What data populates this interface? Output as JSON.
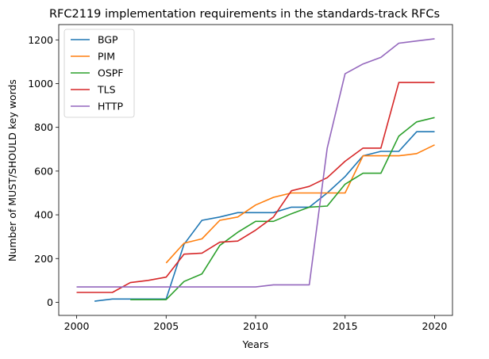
{
  "chart_data": {
    "type": "line",
    "title": "RFC2119 implementation requirements in the standards-track RFCs",
    "xlabel": "Years",
    "ylabel": "Number of MUST/SHOULD key words",
    "xlim": [
      1999,
      2021
    ],
    "ylim": [
      -60,
      1270
    ],
    "xticks": [
      2000,
      2005,
      2010,
      2015,
      2020
    ],
    "yticks": [
      0,
      200,
      400,
      600,
      800,
      1000,
      1200
    ],
    "legend": "upper-left",
    "grid": false,
    "series": [
      {
        "name": "BGP",
        "color": "#1f77b4",
        "x": [
          2001,
          2002,
          2003,
          2004,
          2005,
          2006,
          2007,
          2008,
          2009,
          2010,
          2011,
          2012,
          2013,
          2014,
          2015,
          2016,
          2017,
          2018,
          2019,
          2020
        ],
        "y": [
          5,
          15,
          15,
          15,
          15,
          265,
          375,
          390,
          410,
          410,
          410,
          435,
          435,
          500,
          575,
          670,
          690,
          690,
          780,
          780
        ]
      },
      {
        "name": "PIM",
        "color": "#ff7f0e",
        "x": [
          2005,
          2006,
          2007,
          2008,
          2009,
          2010,
          2011,
          2012,
          2013,
          2014,
          2015,
          2016,
          2017,
          2018,
          2019,
          2020
        ],
        "y": [
          180,
          270,
          290,
          375,
          390,
          445,
          480,
          500,
          500,
          500,
          500,
          670,
          670,
          670,
          680,
          720
        ]
      },
      {
        "name": "OSPF",
        "color": "#2ca02c",
        "x": [
          2003,
          2004,
          2005,
          2006,
          2007,
          2008,
          2009,
          2010,
          2011,
          2012,
          2013,
          2014,
          2015,
          2016,
          2017,
          2018,
          2019,
          2020
        ],
        "y": [
          12,
          12,
          12,
          95,
          130,
          260,
          320,
          370,
          370,
          405,
          435,
          440,
          540,
          590,
          590,
          760,
          825,
          845
        ]
      },
      {
        "name": "TLS",
        "color": "#d62728",
        "x": [
          2000,
          2001,
          2002,
          2003,
          2004,
          2005,
          2006,
          2007,
          2008,
          2009,
          2010,
          2011,
          2012,
          2013,
          2014,
          2015,
          2016,
          2017,
          2018,
          2019,
          2020
        ],
        "y": [
          45,
          45,
          45,
          90,
          100,
          115,
          220,
          225,
          275,
          280,
          330,
          390,
          510,
          530,
          570,
          645,
          705,
          705,
          1005,
          1005,
          1005
        ]
      },
      {
        "name": "HTTP",
        "color": "#9467bd",
        "x": [
          2000,
          2001,
          2002,
          2003,
          2004,
          2005,
          2006,
          2007,
          2008,
          2009,
          2010,
          2011,
          2012,
          2013,
          2014,
          2015,
          2016,
          2017,
          2018,
          2019,
          2020
        ],
        "y": [
          70,
          70,
          70,
          70,
          70,
          70,
          70,
          70,
          70,
          70,
          70,
          80,
          80,
          80,
          705,
          1045,
          1090,
          1120,
          1185,
          1195,
          1205
        ]
      }
    ]
  }
}
